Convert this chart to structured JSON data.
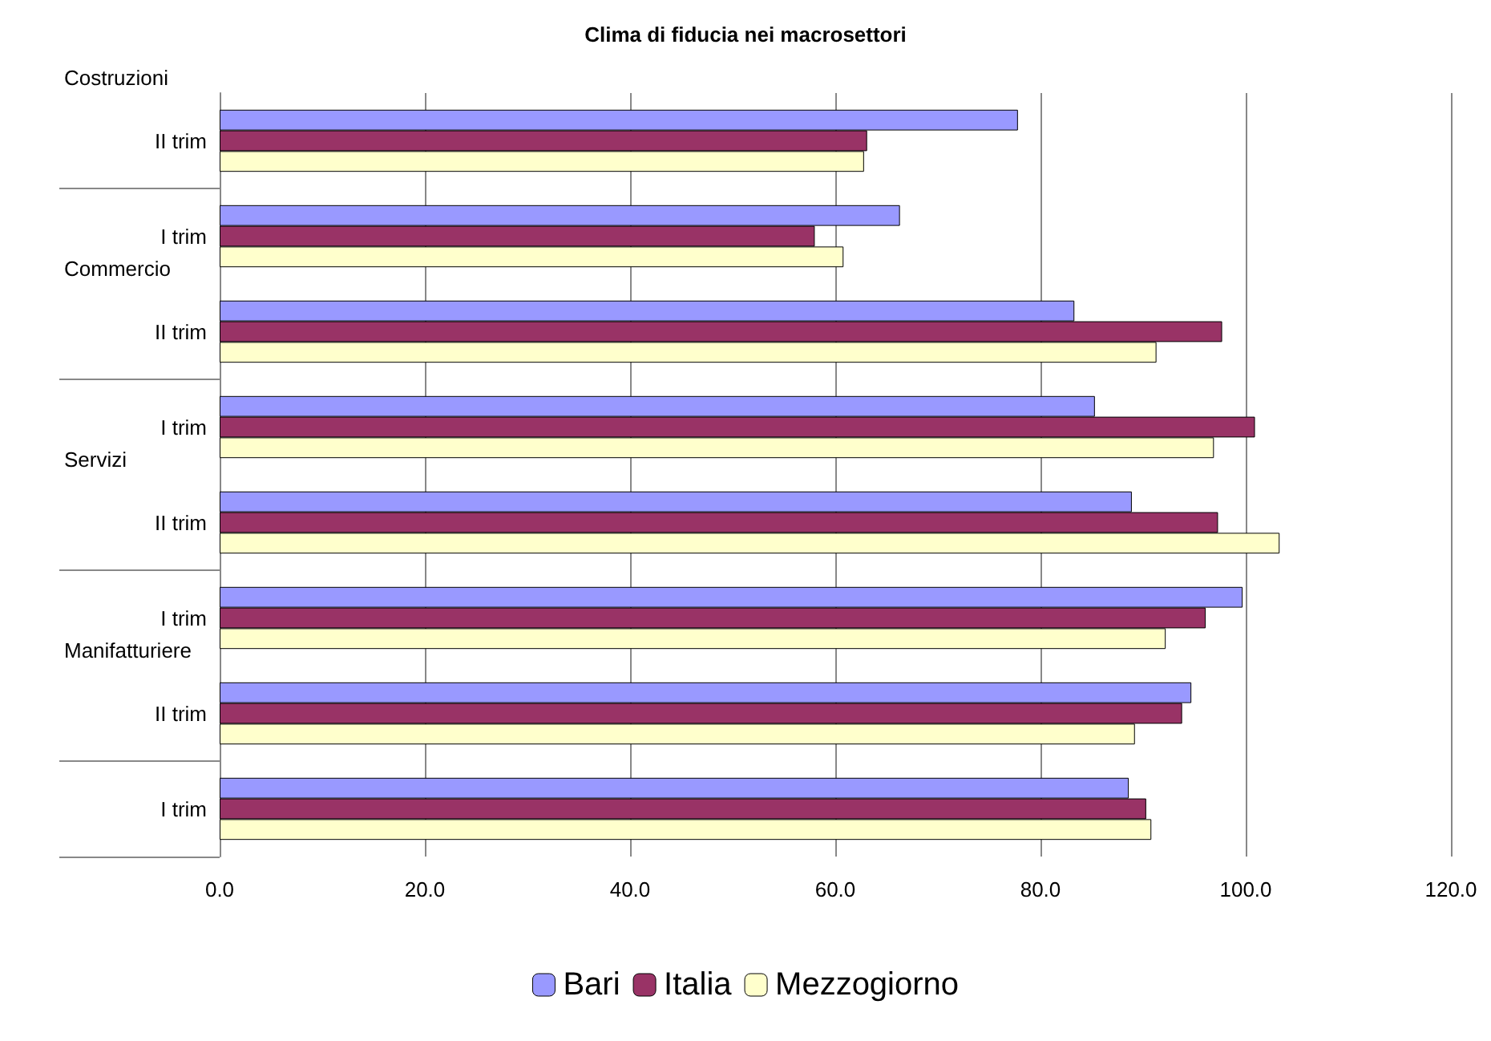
{
  "chart_data": {
    "type": "bar",
    "orientation": "horizontal",
    "title": "Clima di fiducia nei macrosettori",
    "categories": [
      "II trim",
      "I trim",
      "II trim",
      "I trim",
      "II trim",
      "I trim",
      "II trim",
      "I trim"
    ],
    "series": [
      {
        "name": "Bari",
        "color": "#9999ff",
        "values": [
          77.8,
          66.3,
          83.3,
          85.3,
          88.9,
          99.7,
          94.7,
          88.6
        ]
      },
      {
        "name": "Italia",
        "color": "#993366",
        "values": [
          63.1,
          58.0,
          97.7,
          100.9,
          97.3,
          96.1,
          93.8,
          90.3
        ]
      },
      {
        "name": "Mezzogiorno",
        "color": "#ffffcc",
        "values": [
          62.8,
          60.8,
          91.3,
          96.9,
          103.3,
          92.2,
          89.2,
          90.8
        ]
      }
    ],
    "annotations": [
      "Costruzioni",
      "Commercio",
      "Servizi",
      "Manifatturiere"
    ],
    "xlim": [
      0,
      120
    ],
    "xticks": [
      {
        "value": 0,
        "label": "0.0"
      },
      {
        "value": 20,
        "label": "20.0"
      },
      {
        "value": 40,
        "label": "40.0"
      },
      {
        "value": 60,
        "label": "60.0"
      },
      {
        "value": 80,
        "label": "80.0"
      },
      {
        "value": 100,
        "label": "100.0"
      },
      {
        "value": 120,
        "label": "120.0"
      }
    ],
    "grid": "x",
    "legend": "bottom"
  }
}
